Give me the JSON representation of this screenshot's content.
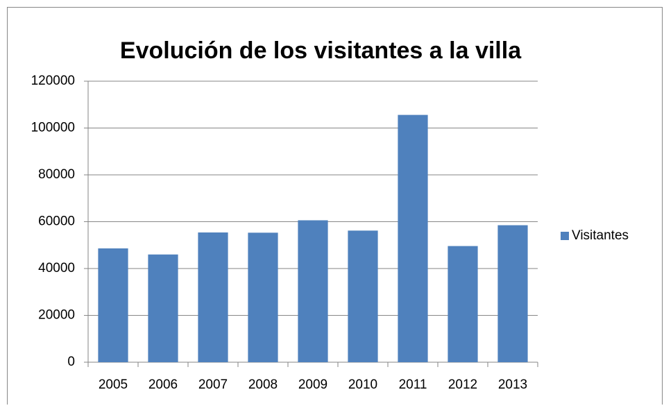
{
  "chart_data": {
    "type": "bar",
    "title": "Evolución de los visitantes a la villa",
    "categories": [
      "2005",
      "2006",
      "2007",
      "2008",
      "2009",
      "2010",
      "2011",
      "2012",
      "2013"
    ],
    "series": [
      {
        "name": "Visitantes",
        "color": "#4f81bd",
        "values": [
          48600,
          46000,
          55400,
          55300,
          60600,
          56200,
          105600,
          49600,
          58500
        ]
      }
    ],
    "ylim": [
      0,
      120000
    ],
    "yticks": [
      0,
      20000,
      40000,
      60000,
      80000,
      100000,
      120000
    ],
    "grid": true,
    "legend": "right"
  }
}
